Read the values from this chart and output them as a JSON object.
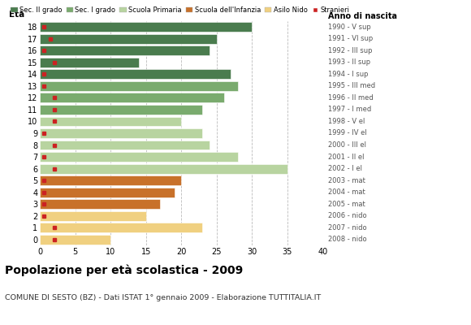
{
  "ages": [
    18,
    17,
    16,
    15,
    14,
    13,
    12,
    11,
    10,
    9,
    8,
    7,
    6,
    5,
    4,
    3,
    2,
    1,
    0
  ],
  "values": [
    30,
    25,
    24,
    14,
    27,
    28,
    26,
    23,
    20,
    23,
    24,
    28,
    35,
    20,
    19,
    17,
    15,
    23,
    10
  ],
  "stranieri": [
    1,
    1,
    1,
    1,
    1,
    1,
    1,
    1,
    1,
    1,
    1,
    1,
    1,
    1,
    1,
    1,
    1,
    1,
    1
  ],
  "stranieri_x": [
    0.5,
    1.5,
    0.5,
    2.0,
    0.5,
    0.5,
    2.0,
    2.0,
    2.0,
    0.5,
    2.0,
    0.5,
    2.0,
    0.5,
    0.5,
    0.5,
    0.5,
    2.0,
    2.0
  ],
  "bar_colors": [
    "#4a7c4e",
    "#4a7c4e",
    "#4a7c4e",
    "#4a7c4e",
    "#4a7c4e",
    "#7aab6e",
    "#7aab6e",
    "#7aab6e",
    "#b8d4a0",
    "#b8d4a0",
    "#b8d4a0",
    "#b8d4a0",
    "#b8d4a0",
    "#c8712a",
    "#c8712a",
    "#c8712a",
    "#f0d080",
    "#f0d080",
    "#f0d080"
  ],
  "right_labels": [
    "1990 - V sup",
    "1991 - VI sup",
    "1992 - III sup",
    "1993 - II sup",
    "1994 - I sup",
    "1995 - III med",
    "1996 - II med",
    "1997 - I med",
    "1998 - V el",
    "1999 - IV el",
    "2000 - III el",
    "2001 - II el",
    "2002 - I el",
    "2003 - mat",
    "2004 - mat",
    "2005 - mat",
    "2006 - nido",
    "2007 - nido",
    "2008 - nido"
  ],
  "legend_labels": [
    "Sec. II grado",
    "Sec. I grado",
    "Scuola Primaria",
    "Scuola dell'Infanzia",
    "Asilo Nido",
    "Stranieri"
  ],
  "legend_colors": [
    "#4a7c4e",
    "#7aab6e",
    "#b8d4a0",
    "#c8712a",
    "#f0d080",
    "#cc2222"
  ],
  "title": "Popolazione per età scolastica - 2009",
  "subtitle": "COMUNE DI SESTO (BZ) - Dati ISTAT 1° gennaio 2009 - Elaborazione TUTTITALIA.IT",
  "ylabel_left": "Età",
  "ylabel_right": "Anno di nascita",
  "xlim": [
    0,
    40
  ],
  "xticks": [
    0,
    5,
    10,
    15,
    20,
    25,
    30,
    35,
    40
  ],
  "background_color": "#ffffff",
  "grid_color": "#bbbbbb",
  "stranieri_color": "#cc2222"
}
